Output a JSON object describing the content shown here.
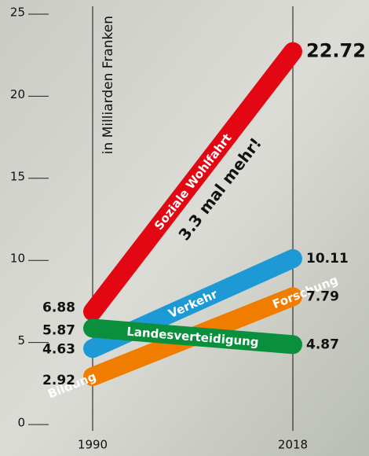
{
  "chart_data": {
    "type": "slope",
    "y_axis_label": "in Milliarden Franken",
    "annotation": "3.3 mal mehr!",
    "categories": [
      "1990",
      "2018"
    ],
    "ylim": [
      0,
      25
    ],
    "yticks": [
      0,
      5,
      10,
      15,
      20,
      25
    ],
    "series": [
      {
        "name": "Soziale Wohlfahrt",
        "color": "#e30613",
        "values": [
          6.88,
          22.72
        ]
      },
      {
        "name": "Verkehr",
        "color": "#1d9ad6",
        "values": [
          4.63,
          10.11
        ]
      },
      {
        "name": "Bildung & Forschung",
        "color": "#f07d00",
        "values": [
          2.92,
          7.79
        ]
      },
      {
        "name": "Landesverteidigung",
        "color": "#0a8f3c",
        "values": [
          5.87,
          4.87
        ]
      }
    ]
  }
}
